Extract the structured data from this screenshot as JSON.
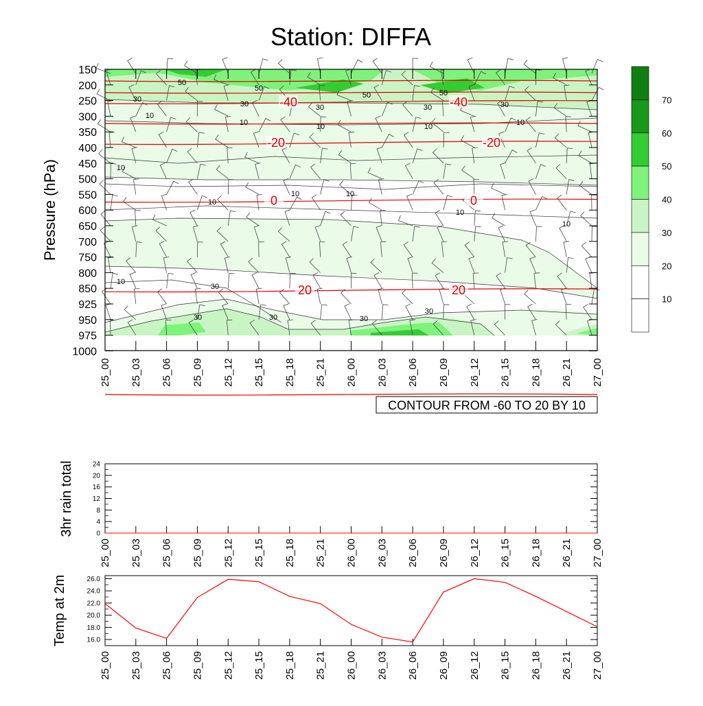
{
  "title": "Station: DIFFA",
  "time_labels": [
    "25_00",
    "25_03",
    "25_06",
    "25_09",
    "25_12",
    "25_15",
    "25_18",
    "25_21",
    "26_00",
    "26_03",
    "26_06",
    "26_09",
    "26_12",
    "26_15",
    "26_18",
    "26_21",
    "27_00"
  ],
  "chart_data": [
    {
      "id": "cross-section",
      "type": "heatmap",
      "ylabel": "Pressure (hPa)",
      "pressure_levels": [
        "150",
        "200",
        "250",
        "300",
        "350",
        "400",
        "450",
        "500",
        "550",
        "600",
        "650",
        "700",
        "750",
        "800",
        "850",
        "925",
        "950",
        "975",
        "1000"
      ],
      "footer": "CONTOUR FROM -60 TO 20 BY 10",
      "shading": "wind speed",
      "colorbar": {
        "labels": [
          "10",
          "20",
          "30",
          "40",
          "50",
          "60",
          "70"
        ],
        "colors": [
          "#ffffff",
          "#ffffff",
          "#eafbe8",
          "#c9f5c4",
          "#7ef27a",
          "#33cc33",
          "#199919",
          "#0f7f0f"
        ]
      },
      "temperature_contours": [
        {
          "label": "-40",
          "level": 255
        },
        {
          "label": "-20",
          "level": 385
        },
        {
          "label": "0",
          "level": 570
        },
        {
          "label": "20",
          "level": 860
        }
      ],
      "wind_speed_labels": [
        "50",
        "50",
        "50",
        "50",
        "30",
        "30",
        "30",
        "30",
        "30",
        "10",
        "10",
        "10",
        "10",
        "10",
        "10",
        "10",
        "10",
        "10",
        "10",
        "10",
        "10",
        "30",
        "30",
        "30",
        "30",
        "30"
      ]
    },
    {
      "id": "rain",
      "type": "line",
      "ylabel": "3hr rain total",
      "yticks": [
        "0",
        "4",
        "8",
        "12",
        "16",
        "20",
        "24"
      ],
      "ylim": [
        0,
        24
      ],
      "values": [
        0,
        0,
        0,
        0,
        0,
        0,
        0,
        0,
        0,
        0,
        0,
        0,
        0,
        0,
        0,
        0,
        0
      ]
    },
    {
      "id": "temp",
      "type": "line",
      "ylabel": "Temp at 2m",
      "yticks": [
        "16.0",
        "18.0",
        "20.0",
        "22.0",
        "24.0",
        "26.0"
      ],
      "ylim": [
        15,
        26.5
      ],
      "values": [
        21.9,
        17.9,
        16.2,
        22.9,
        25.9,
        25.5,
        23.1,
        21.9,
        18.5,
        16.4,
        15.6,
        23.8,
        26.0,
        25.4,
        23.1,
        20.6,
        18.1
      ],
      "line_color": "#ff0000"
    }
  ]
}
